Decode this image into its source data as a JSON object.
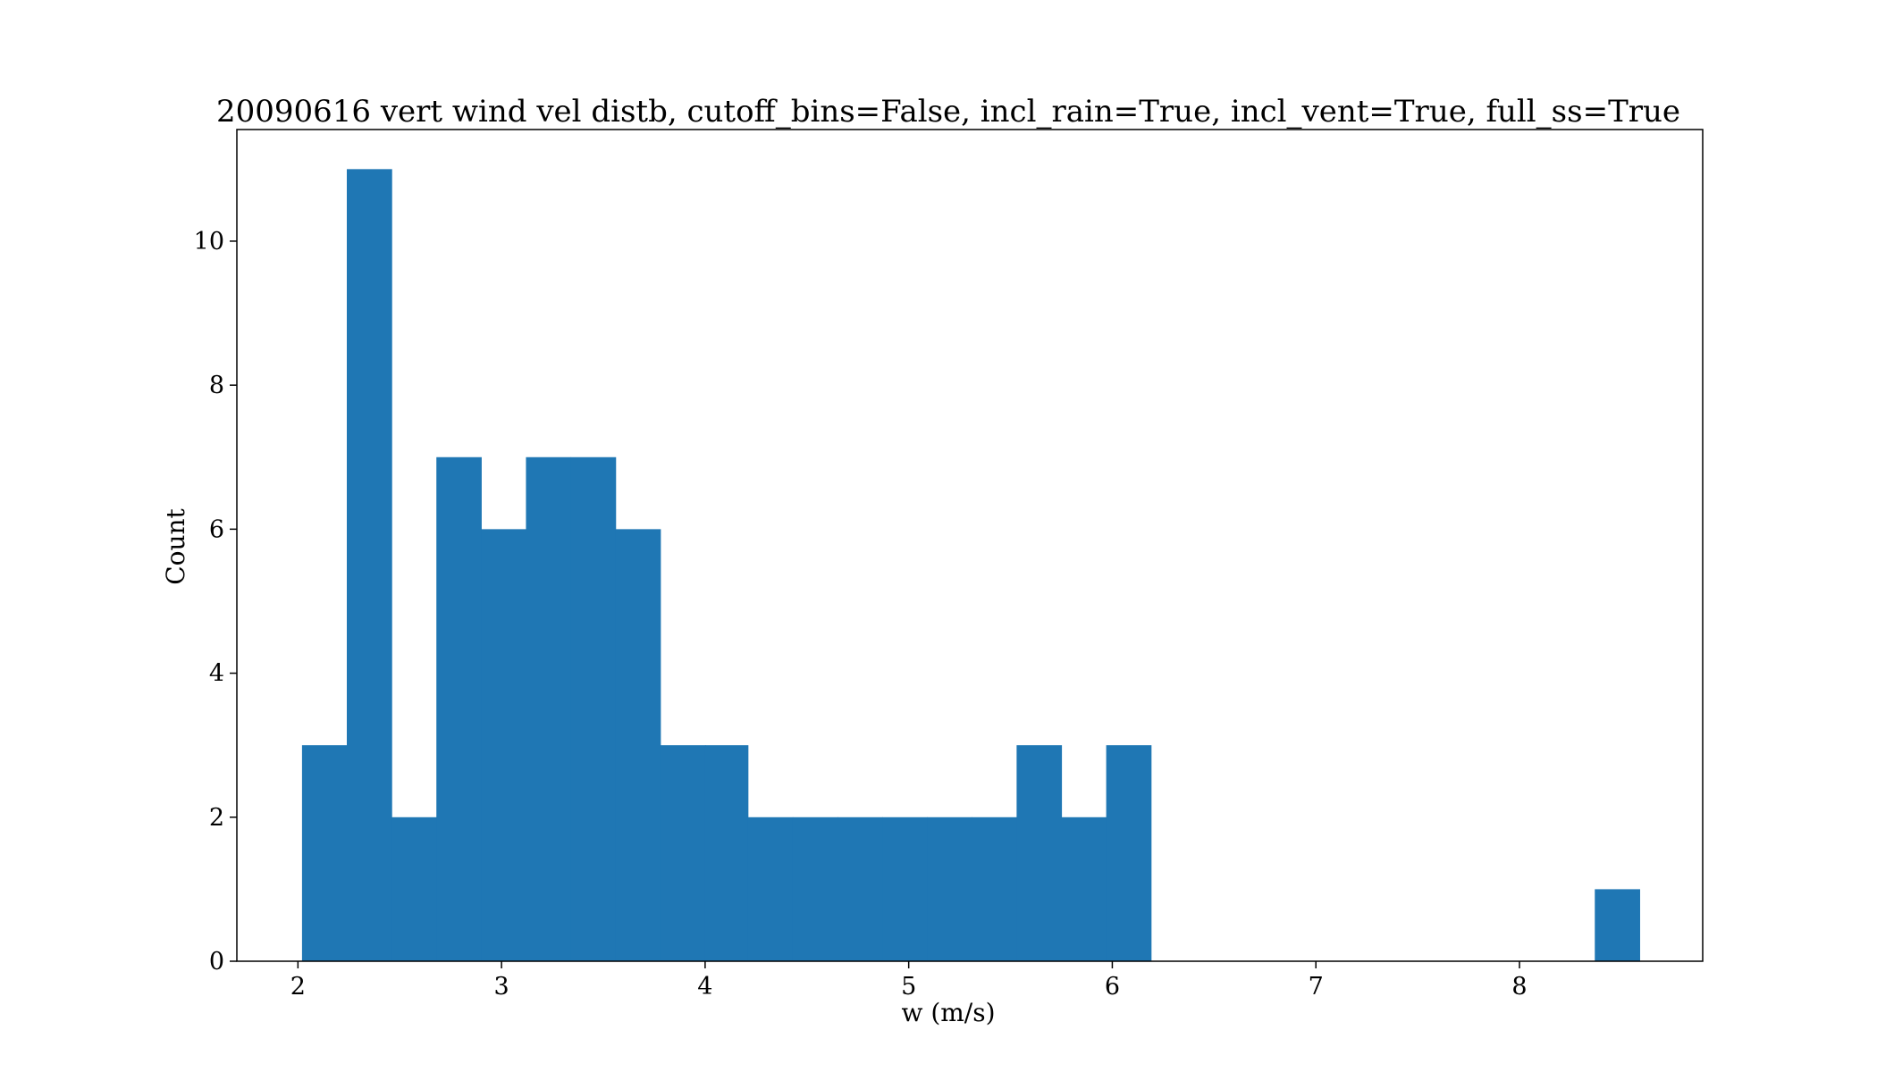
{
  "chart_data": {
    "type": "bar",
    "title": "20090616 vert wind vel distb, cutoff_bins=False, incl_rain=True, incl_vent=True, full_ss=True",
    "xlabel": "w (m/s)",
    "ylabel": "Count",
    "xlim": [
      1.7,
      8.9
    ],
    "ylim": [
      0,
      11.55
    ],
    "xticks": [
      2,
      3,
      4,
      5,
      6,
      7,
      8
    ],
    "yticks": [
      0,
      2,
      4,
      6,
      8,
      10
    ],
    "grid": false,
    "bar_color": "#1f77b4",
    "bins": [
      {
        "x0": 2.02,
        "x1": 2.24,
        "count": 3
      },
      {
        "x0": 2.24,
        "x1": 2.46,
        "count": 11
      },
      {
        "x0": 2.46,
        "x1": 2.68,
        "count": 2
      },
      {
        "x0": 2.68,
        "x1": 2.9,
        "count": 7
      },
      {
        "x0": 2.9,
        "x1": 3.12,
        "count": 6
      },
      {
        "x0": 3.12,
        "x1": 3.34,
        "count": 7
      },
      {
        "x0": 3.34,
        "x1": 3.56,
        "count": 7
      },
      {
        "x0": 3.56,
        "x1": 3.78,
        "count": 6
      },
      {
        "x0": 3.78,
        "x1": 4.0,
        "count": 3
      },
      {
        "x0": 4.0,
        "x1": 4.21,
        "count": 3
      },
      {
        "x0": 4.21,
        "x1": 4.43,
        "count": 2
      },
      {
        "x0": 4.43,
        "x1": 4.65,
        "count": 2
      },
      {
        "x0": 4.65,
        "x1": 4.87,
        "count": 2
      },
      {
        "x0": 4.87,
        "x1": 5.09,
        "count": 2
      },
      {
        "x0": 5.09,
        "x1": 5.31,
        "count": 2
      },
      {
        "x0": 5.31,
        "x1": 5.53,
        "count": 2
      },
      {
        "x0": 5.53,
        "x1": 5.75,
        "count": 3
      },
      {
        "x0": 5.75,
        "x1": 5.97,
        "count": 2
      },
      {
        "x0": 5.97,
        "x1": 6.19,
        "count": 3
      },
      {
        "x0": 8.37,
        "x1": 8.59,
        "count": 1
      }
    ]
  }
}
